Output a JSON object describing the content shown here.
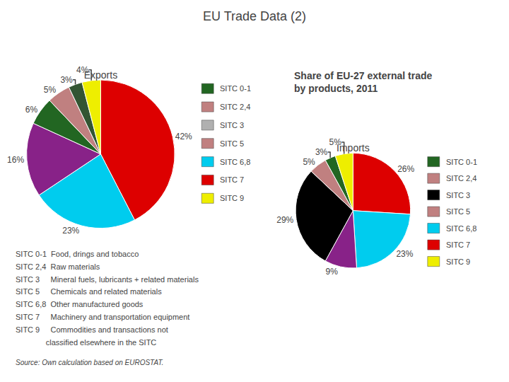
{
  "title": "EU Trade Data (2)",
  "subtitle": "Share of EU-27 external trade\nby products, 2011",
  "chart_data": [
    {
      "type": "pie",
      "title": "Exports",
      "values": [
        42,
        23,
        16,
        6,
        5,
        3,
        4
      ],
      "value_labels": [
        "42%",
        "23%",
        "16%",
        "6%",
        "5%",
        "3%",
        "4%"
      ],
      "colors": [
        "#dd0000",
        "#00ccee",
        "#882288",
        "#226622",
        "#c08080",
        "#335533",
        "#eeee00"
      ],
      "data_labels": true,
      "legend_entries": [
        {
          "name": "SITC 0-1",
          "color": "#226622"
        },
        {
          "name": "SITC 2,4",
          "color": "#c08080"
        },
        {
          "name": "SITC 3",
          "color": "#b0b0b0"
        },
        {
          "name": "SITC 5",
          "color": "#c08080"
        },
        {
          "name": "SITC 6,8",
          "color": "#00ccee"
        },
        {
          "name": "SITC 7",
          "color": "#dd0000"
        },
        {
          "name": "SITC 9",
          "color": "#eeee00"
        }
      ]
    },
    {
      "type": "pie",
      "title": "Imports",
      "values": [
        26,
        23,
        9,
        29,
        5,
        3,
        5
      ],
      "value_labels": [
        "26%",
        "23%",
        "9%",
        "29%",
        "5%",
        "3%",
        "5%"
      ],
      "colors": [
        "#dd0000",
        "#00ccee",
        "#882288",
        "#000000",
        "#c08080",
        "#226622",
        "#eeee00"
      ],
      "data_labels": true,
      "legend_entries": [
        {
          "name": "SITC 0-1",
          "color": "#226622"
        },
        {
          "name": "SITC 2,4",
          "color": "#c08080"
        },
        {
          "name": "SITC 3",
          "color": "#000000"
        },
        {
          "name": "SITC 5",
          "color": "#c08080"
        },
        {
          "name": "SITC 6,8",
          "color": "#00ccee"
        },
        {
          "name": "SITC 7",
          "color": "#dd0000"
        },
        {
          "name": "SITC 9",
          "color": "#eeee00"
        }
      ]
    }
  ],
  "notes": [
    "SITC 0-1  Food, drings and tobacco",
    "SITC 2,4  Raw materials",
    "SITC 3     Mineral fuels, lubricants + related materials",
    "SITC 5     Chemicals and related materials",
    "SITC 6,8  Other manufactured goods",
    "SITC 7     Machinery and transportation equipment",
    "SITC 9     Commodities and transactions not",
    "              classified elsewhere in the SITC"
  ],
  "source": "Source: Own calculation based on EUROSTAT."
}
